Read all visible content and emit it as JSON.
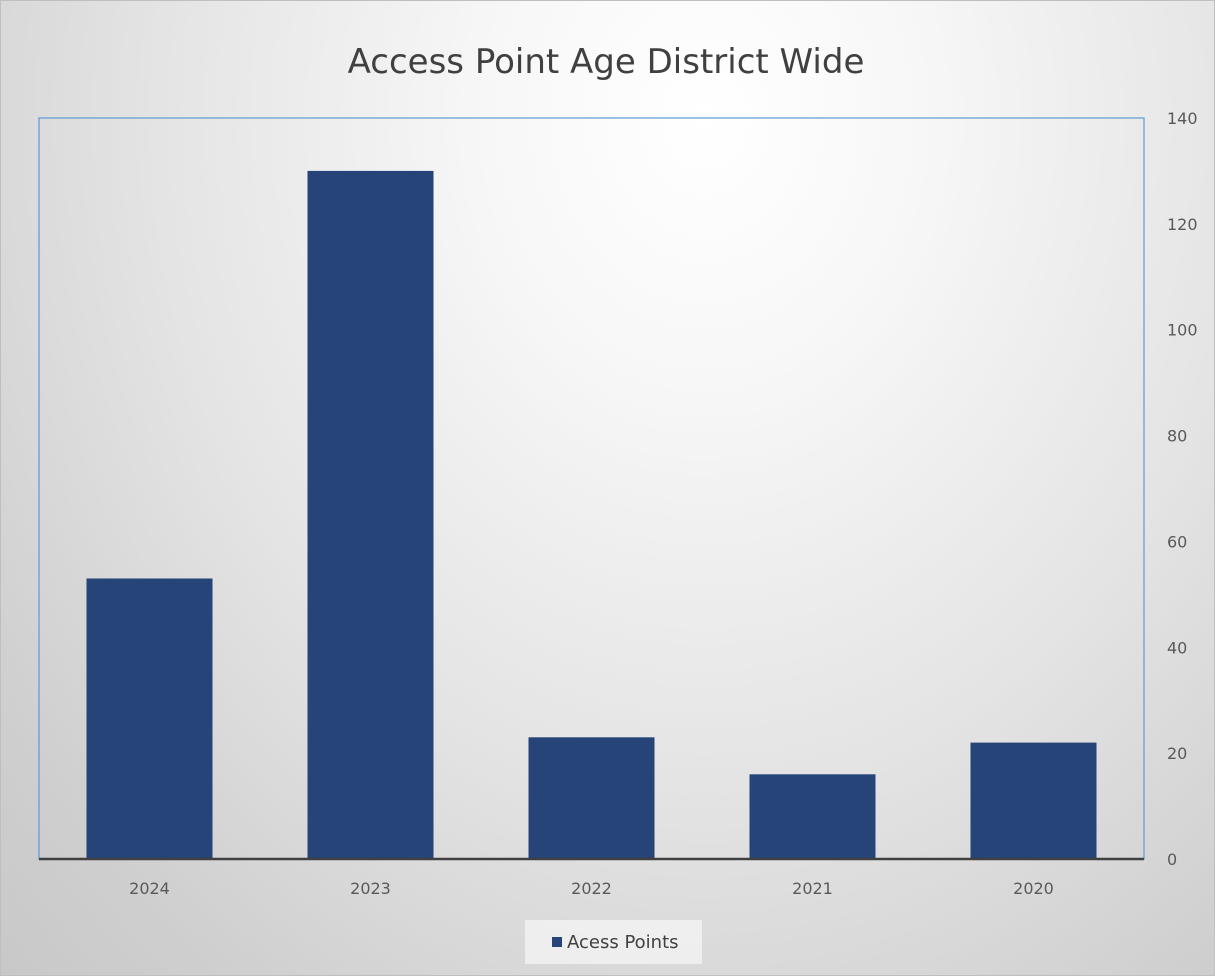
{
  "chart_data": {
    "type": "bar",
    "title": "Access Point Age District Wide",
    "categories": [
      "2024",
      "2023",
      "2022",
      "2021",
      "2020"
    ],
    "series": [
      {
        "name": "Acess Points",
        "values": [
          53,
          130,
          23,
          16,
          22
        ],
        "color": "#264478"
      }
    ],
    "ylim": [
      0,
      140
    ],
    "y_ticks": [
      0,
      20,
      40,
      60,
      80,
      100,
      120,
      140
    ],
    "y_axis_side": "right",
    "legend_position": "bottom",
    "grid": false
  }
}
